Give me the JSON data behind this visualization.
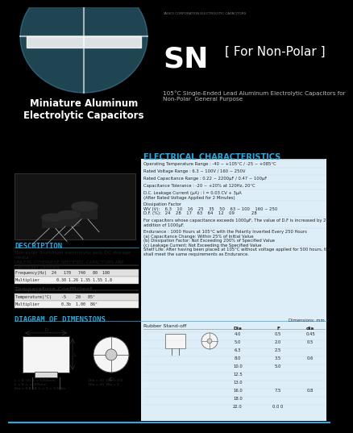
{
  "header_bg": "#000000",
  "left_header_bg": "#29aae1",
  "left_header_text": "Miniature Aluminum\nElectrolytic Capacitors",
  "company_text": "YAGEO CORPORATION ELECTROLYTIC CAPACITORS",
  "series_name": "SN",
  "series_subtitle": "[ For Non-Polar ]",
  "series_desc": "105°C Single-Ended Lead Aluminum Electrolytic Capacitors for\nNon-Polar  General Purpose",
  "body_bg": "#c8e8f5",
  "section_title_color": "#29aae1",
  "elec_title": "ELECTRICAL CHARACTERISTICS",
  "elec_lines": [
    "Operating Temperature Range : -40 ~ +105°C / -25 ~ +085°C",
    "Rated Voltage Range : 6.3 ~ 100V / 160 ~ 250V",
    "Rated Capacitance Range : 0.22 ~ 2200μF / 0.47 ~ 100μF",
    "Capacitance Tolerance : -20 ~ +20% at 120Hz, 20°C",
    "D.C. Leakage Current (μA) : I = 0.03 CV + 3μA\n(After Rated Voltage Applied for 2 Minutes)",
    "Dissipation Factor\nWV (V):    6.3    10    16    25    35    50    63 ~ 100    160 ~ 250\nD.F. (%):   24    28    17    63    64    12    09             28",
    "For capacitors whose capacitance exceeds 1000μF, The value of D.F is increased by 2% for every\naddition of 1000μF.",
    "Endurance : 1000 Hours at 105°C with the Polarity Inverted Every 250 Hours\n(a) Capacitance Change: Within 25% of Initial Value\n(b) Dissipation Factor: Not Exceeding 200% of Specified Value\n(c) Leakage Current: Not Exceeding the Specified Value",
    "Shelf Life: After having been placed at 105°C without voltage applied for 500 hours, the capacitors\nshall meet the same requirements as Endurance."
  ],
  "desc_title": "DESCRIPTION",
  "desc_text": "Non-polar Aluminum electrolytic poly DC storage\nmedia.",
  "desc_text2": "UNLESS OTHERWISE SPECIFIED, CAPACITORS ARE\nElectrically Certified.",
  "freq_label": "Frequency(Hz)",
  "freq_vals": "24    170   740   80   100",
  "mult_label": "Multiplier",
  "mult_vals": "0.30  1.26  1.35  1.55  1.8",
  "temp_coeff_title": "Temperature Coefficient",
  "temp_label": "Temperature(°C)",
  "temp_vals": "-5    20   85°",
  "temp_mult_vals": "0.3b  1.00  86°",
  "dim_title": "DIAGRAM OF DIMENSIONS",
  "dim_note": "Dimensions: mm",
  "rubber_label": "Rubber Stand-off",
  "dim_table_header": [
    "Dia",
    "F",
    "dia"
  ],
  "dim_table_rows": [
    [
      "4.0",
      "0.5",
      "0.45"
    ],
    [
      "5.0",
      "2.0",
      "0.5"
    ],
    [
      "6.3",
      "2.5",
      ""
    ],
    [
      "8.0",
      "3.5",
      "0.6"
    ],
    [
      "10.0",
      "5.0",
      ""
    ],
    [
      "12.5",
      "",
      ""
    ],
    [
      "13.0",
      "",
      ""
    ],
    [
      "16.0",
      "7.5",
      "0.8"
    ],
    [
      "18.0",
      "",
      ""
    ],
    [
      "22.0",
      "0.0 0",
      ""
    ]
  ],
  "dim_footer1": "L = 0 : 10, L = 1200mm      Dia = 10  Dia = 0.0",
  "dim_footer2": "L = 0 : L = 200mm             Dia = 20  Dia = 1",
  "dim_footer3": "Dia = 0.8-18, L = 1 = 3.5Mm"
}
